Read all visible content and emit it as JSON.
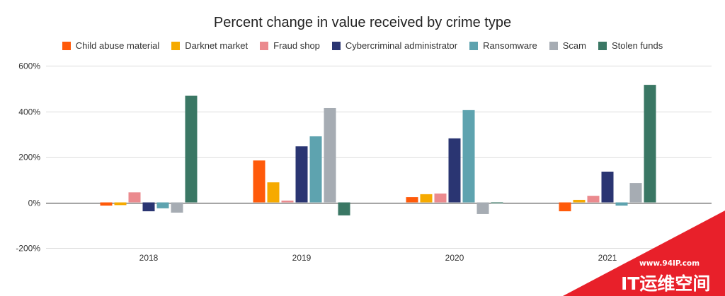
{
  "chart_data": {
    "type": "bar",
    "title": "Percent change in value received by crime type",
    "categories": [
      "2018",
      "2019",
      "2020",
      "2021"
    ],
    "series": [
      {
        "name": "Child abuse material",
        "color": "#FF5A0A",
        "values": [
          -14,
          184,
          23,
          -39
        ]
      },
      {
        "name": "Darknet market",
        "color": "#F6AA00",
        "values": [
          -12,
          88,
          36,
          11
        ]
      },
      {
        "name": "Fraud shop",
        "color": "#EB8A8E",
        "values": [
          44,
          8,
          39,
          29
        ]
      },
      {
        "name": "Cybercriminal administrator",
        "color": "#2A3572",
        "values": [
          -39,
          246,
          281,
          135
        ]
      },
      {
        "name": "Ransomware",
        "color": "#5EA3AF",
        "values": [
          -26,
          290,
          405,
          -14
        ]
      },
      {
        "name": "Scam",
        "color": "#A6ACB3",
        "values": [
          -45,
          414,
          -51,
          85
        ]
      },
      {
        "name": "Stolen funds",
        "color": "#3A7764",
        "values": [
          468,
          -57,
          -4,
          516
        ]
      }
    ],
    "y_ticks": [
      {
        "value": 600,
        "label": "600%"
      },
      {
        "value": 400,
        "label": "400%"
      },
      {
        "value": 200,
        "label": "200%"
      },
      {
        "value": 0,
        "label": "0%"
      },
      {
        "value": -200,
        "label": "-200%"
      }
    ],
    "ylim": [
      -200,
      600
    ],
    "grid": true,
    "legend_position": "top"
  },
  "watermark": {
    "url": "www.94IP.com",
    "text": "IT运维空间",
    "color": "#E8202A"
  }
}
